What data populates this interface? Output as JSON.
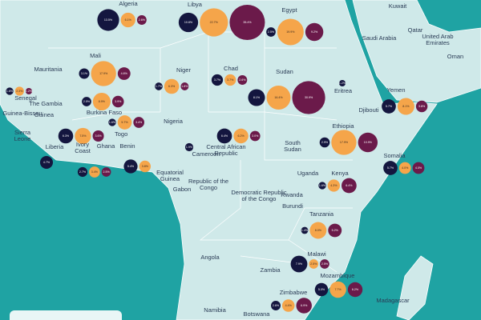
{
  "countries": [
    {
      "name": "Algeria",
      "bubbles": [
        {
          "value": 13.5,
          "label": "13.5%"
        },
        {
          "value": 6.1,
          "label": "6.1%"
        },
        {
          "value": 2.6,
          "label": "2.6%"
        }
      ]
    },
    {
      "name": "Libya",
      "bubbles": [
        {
          "value": 10.8,
          "label": "10.8%"
        },
        {
          "value": 22.7,
          "label": "22.7%"
        },
        {
          "value": 35.4,
          "label": "35.4%"
        }
      ]
    },
    {
      "name": "Egypt",
      "bubbles": [
        {
          "value": 2.5,
          "label": "2.5%"
        },
        {
          "value": 19.9,
          "label": "19.9%"
        },
        {
          "value": 9.2,
          "label": "9.2%"
        }
      ]
    },
    {
      "name": "Mali",
      "bubbles": [
        {
          "value": 3.1,
          "label": "3.1%"
        },
        {
          "value": 17.9,
          "label": "17.9%"
        },
        {
          "value": 4.6,
          "label": "4.6%"
        }
      ]
    },
    {
      "name": "Niger",
      "bubbles": [
        {
          "value": 1.7,
          "label": "1.7%"
        },
        {
          "value": 6.3,
          "label": "6.3%"
        },
        {
          "value": 1.8,
          "label": "1.8%"
        }
      ]
    },
    {
      "name": "Chad",
      "bubbles": [
        {
          "value": 3.7,
          "label": "3.7%"
        },
        {
          "value": 3.7,
          "label": "3.7%"
        },
        {
          "value": 2.6,
          "label": "2.6%"
        }
      ]
    },
    {
      "name": "Sudan",
      "bubbles": [
        {
          "value": 8.1,
          "label": "8.1%"
        },
        {
          "value": 16.4,
          "label": "16.4%"
        },
        {
          "value": 30.9,
          "label": "30.9%"
        }
      ]
    },
    {
      "name": "Eritrea",
      "bubbles": [
        {
          "value": 1.2,
          "label": "1.2%"
        }
      ]
    },
    {
      "name": "Yemen",
      "bubbles": [
        {
          "value": 5.7,
          "label": "5.7%"
        },
        {
          "value": 8.1,
          "label": "8.1%"
        },
        {
          "value": 3.8,
          "label": "3.8%"
        }
      ]
    },
    {
      "name": "Senegal",
      "bubbles": [
        {
          "value": 1.6,
          "label": "1.6%"
        },
        {
          "value": 2.3,
          "label": "2.3%"
        },
        {
          "value": 1.2,
          "label": "1.2%"
        }
      ]
    },
    {
      "name": "Burkina Faso",
      "bubbles": [
        {
          "value": 2.5,
          "label": "2.5%"
        },
        {
          "value": 8.9,
          "label": "8.9%"
        },
        {
          "value": 3.9,
          "label": "3.9%"
        }
      ]
    },
    {
      "name": "Ivory Coast",
      "bubbles": [
        {
          "value": 6.3,
          "label": "6.3%"
        },
        {
          "value": 7.5,
          "label": "7.5%"
        },
        {
          "value": 3.6,
          "label": "3.6%"
        }
      ]
    },
    {
      "name": "Ghana",
      "bubbles": [
        {
          "value": 2.7,
          "label": "2.7%"
        },
        {
          "value": 3.4,
          "label": "3.4%"
        },
        {
          "value": 2.5,
          "label": "2.5%"
        }
      ]
    },
    {
      "name": "Benin",
      "bubbles": [
        {
          "value": 1.6,
          "label": "1.6%"
        },
        {
          "value": 5.7,
          "label": "5.7%"
        },
        {
          "value": 3.4,
          "label": "3.4%"
        }
      ]
    },
    {
      "name": "Nigeria",
      "bubbles": [
        {
          "value": 5.4,
          "label": "5.4%"
        },
        {
          "value": 3.8,
          "label": "3.8%"
        }
      ]
    },
    {
      "name": "Liberia",
      "bubbles": [
        {
          "value": 4.7,
          "label": "4.7%"
        }
      ]
    },
    {
      "name": "Cameroon",
      "bubbles": [
        {
          "value": 1.9,
          "label": "1.9%"
        }
      ]
    },
    {
      "name": "Central African Republic",
      "bubbles": [
        {
          "value": 6.4,
          "label": "6.4%"
        },
        {
          "value": 6.2,
          "label": "6.2%"
        },
        {
          "value": 3.0,
          "label": "3.0%"
        }
      ]
    },
    {
      "name": "Ethiopia",
      "bubbles": [
        {
          "value": 2.9,
          "label": "2.9%"
        },
        {
          "value": 17.9,
          "label": "17.9%"
        },
        {
          "value": 10.9,
          "label": "10.9%"
        }
      ]
    },
    {
      "name": "Somalia",
      "bubbles": [
        {
          "value": 5.7,
          "label": "5.7%"
        },
        {
          "value": 4.0,
          "label": "4.0%"
        },
        {
          "value": 4.0,
          "label": "4.0%"
        }
      ]
    },
    {
      "name": "Kenya",
      "bubbles": [
        {
          "value": 1.6,
          "label": "1.6%"
        },
        {
          "value": 4.3,
          "label": "4.3%"
        },
        {
          "value": 6.4,
          "label": "6.4%"
        }
      ]
    },
    {
      "name": "Tanzania",
      "bubbles": [
        {
          "value": 1.4,
          "label": "1.4%"
        },
        {
          "value": 8.0,
          "label": "8.0%"
        },
        {
          "value": 5.2,
          "label": "5.2%"
        }
      ]
    },
    {
      "name": "Malawi",
      "bubbles": [
        {
          "value": 7.9,
          "label": "7.9%"
        },
        {
          "value": 2.5,
          "label": "2.5%"
        },
        {
          "value": 2.5,
          "label": "2.5%"
        }
      ]
    },
    {
      "name": "Mozambique",
      "bubbles": [
        {
          "value": 5.0,
          "label": "5.0%"
        },
        {
          "value": 7.7,
          "label": "7.7%"
        },
        {
          "value": 6.2,
          "label": "6.2%"
        }
      ]
    },
    {
      "name": "Zimbabwe",
      "bubbles": [
        {
          "value": 2.6,
          "label": "2.6%"
        },
        {
          "value": 4.4,
          "label": "4.4%"
        },
        {
          "value": 6.9,
          "label": "6.9%"
        }
      ]
    },
    {
      "name": "Mauritania"
    },
    {
      "name": "The Gambia"
    },
    {
      "name": "Guinea-Bissau"
    },
    {
      "name": "Guinea"
    },
    {
      "name": "Sierra Leone"
    },
    {
      "name": "Togo"
    },
    {
      "name": "Djibouti"
    },
    {
      "name": "South Sudan"
    },
    {
      "name": "Uganda"
    },
    {
      "name": "Rwanda"
    },
    {
      "name": "Burundi"
    },
    {
      "name": "Democratic Republic of the Congo"
    },
    {
      "name": "Republic of the Congo"
    },
    {
      "name": "Gabon"
    },
    {
      "name": "Equatorial Guinea"
    },
    {
      "name": "Angola"
    },
    {
      "name": "Zambia"
    },
    {
      "name": "Botswana"
    },
    {
      "name": "Namibia"
    },
    {
      "name": "Madagascar"
    },
    {
      "name": "Saudi Arabia"
    },
    {
      "name": "Kuwait"
    },
    {
      "name": "Qatar"
    },
    {
      "name": "United Arab Emirates"
    },
    {
      "name": "Oman"
    }
  ]
}
